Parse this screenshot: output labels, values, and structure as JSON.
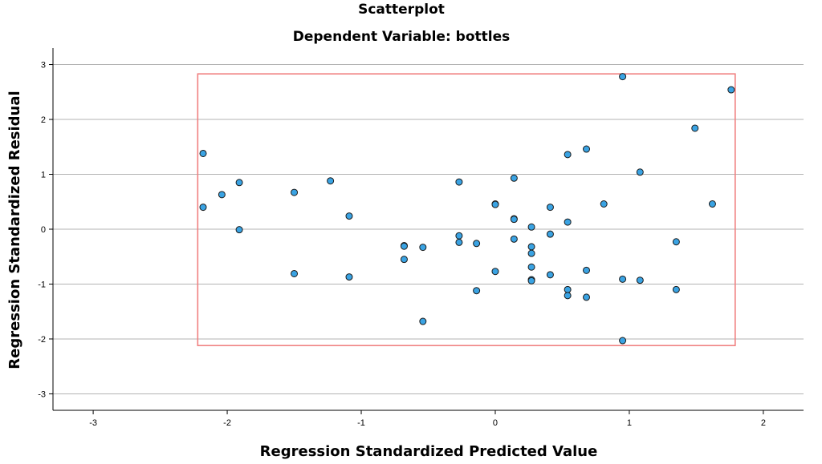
{
  "chart_data": {
    "type": "scatter",
    "title": "Scatterplot",
    "subtitle": "Dependent Variable: bottles",
    "xlabel": "Regression Standardized Predicted Value",
    "ylabel": "Regression Standardized Residual",
    "xlim": [
      -3.3,
      2.3
    ],
    "ylim": [
      -3.3,
      3.3
    ],
    "xticks": [
      "-3",
      "-2",
      "-1",
      "0",
      "1",
      "2"
    ],
    "yticks": [
      "3",
      "2",
      "1",
      "0",
      "-1",
      "-2",
      "-3"
    ],
    "grid": "horizontal",
    "point_color": "#3aa3e3",
    "reference_box": {
      "x": [
        -2.22,
        1.79
      ],
      "y": [
        -2.12,
        2.83
      ],
      "color": "#f08080"
    },
    "points": [
      {
        "x": -2.18,
        "y": 1.38
      },
      {
        "x": -2.18,
        "y": 0.4
      },
      {
        "x": -2.04,
        "y": 0.63
      },
      {
        "x": -1.91,
        "y": 0.85
      },
      {
        "x": -1.91,
        "y": -0.01
      },
      {
        "x": -1.5,
        "y": 0.67
      },
      {
        "x": -1.5,
        "y": -0.81
      },
      {
        "x": -1.23,
        "y": 0.88
      },
      {
        "x": -1.09,
        "y": 0.24
      },
      {
        "x": -1.09,
        "y": -0.87
      },
      {
        "x": -0.68,
        "y": -0.3
      },
      {
        "x": -0.68,
        "y": -0.31
      },
      {
        "x": -0.68,
        "y": -0.55
      },
      {
        "x": -0.54,
        "y": -0.33
      },
      {
        "x": -0.54,
        "y": -1.68
      },
      {
        "x": -0.27,
        "y": 0.86
      },
      {
        "x": -0.27,
        "y": -0.12
      },
      {
        "x": -0.27,
        "y": -0.24
      },
      {
        "x": -0.14,
        "y": -0.26
      },
      {
        "x": -0.14,
        "y": -1.12
      },
      {
        "x": 0.0,
        "y": 0.46
      },
      {
        "x": 0.0,
        "y": 0.45
      },
      {
        "x": 0.0,
        "y": -0.77
      },
      {
        "x": 0.14,
        "y": 0.93
      },
      {
        "x": 0.14,
        "y": 0.19
      },
      {
        "x": 0.14,
        "y": 0.18
      },
      {
        "x": 0.14,
        "y": -0.18
      },
      {
        "x": 0.27,
        "y": 0.04
      },
      {
        "x": 0.27,
        "y": -0.32
      },
      {
        "x": 0.27,
        "y": -0.44
      },
      {
        "x": 0.27,
        "y": -0.69
      },
      {
        "x": 0.27,
        "y": -0.92
      },
      {
        "x": 0.27,
        "y": -0.94
      },
      {
        "x": 0.41,
        "y": 0.4
      },
      {
        "x": 0.41,
        "y": -0.09
      },
      {
        "x": 0.41,
        "y": -0.83
      },
      {
        "x": 0.54,
        "y": 1.36
      },
      {
        "x": 0.54,
        "y": 0.13
      },
      {
        "x": 0.54,
        "y": -1.1
      },
      {
        "x": 0.54,
        "y": -1.21
      },
      {
        "x": 0.68,
        "y": 1.46
      },
      {
        "x": 0.68,
        "y": -0.75
      },
      {
        "x": 0.68,
        "y": -1.24
      },
      {
        "x": 0.81,
        "y": 0.46
      },
      {
        "x": 0.95,
        "y": 2.78
      },
      {
        "x": 0.95,
        "y": -0.91
      },
      {
        "x": 0.95,
        "y": -2.03
      },
      {
        "x": 1.08,
        "y": 1.04
      },
      {
        "x": 1.08,
        "y": -0.93
      },
      {
        "x": 1.35,
        "y": -0.23
      },
      {
        "x": 1.35,
        "y": -1.1
      },
      {
        "x": 1.49,
        "y": 1.84
      },
      {
        "x": 1.62,
        "y": 0.46
      },
      {
        "x": 1.76,
        "y": 2.54
      }
    ]
  }
}
